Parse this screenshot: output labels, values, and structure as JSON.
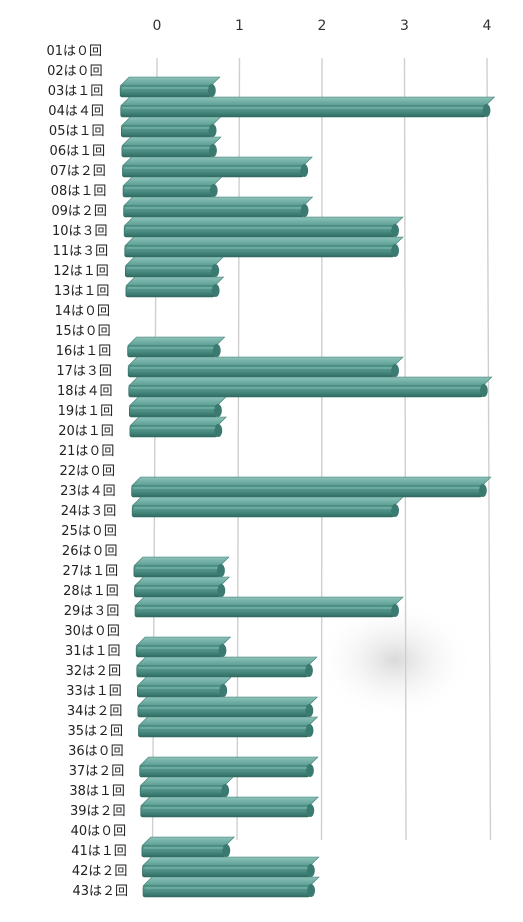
{
  "chart_data": {
    "type": "bar",
    "orientation": "horizontal",
    "title": "",
    "xlabel": "",
    "ylabel": "",
    "xlim": [
      0,
      4
    ],
    "ticks": [
      "0",
      "1",
      "2",
      "3",
      "4"
    ],
    "grid": true,
    "legend": "none",
    "bar_color": "#4f9489",
    "categories": [
      "01は０回",
      "02は０回",
      "03は１回",
      "04は４回",
      "05は１回",
      "06は１回",
      "07は２回",
      "08は１回",
      "09は２回",
      "10は３回",
      "11は３回",
      "12は１回",
      "13は１回",
      "14は０回",
      "15は０回",
      "16は１回",
      "17は３回",
      "18は４回",
      "19は１回",
      "20は１回",
      "21は０回",
      "22は０回",
      "23は４回",
      "24は３回",
      "25は０回",
      "26は０回",
      "27は１回",
      "28は１回",
      "29は３回",
      "30は０回",
      "31は１回",
      "32は２回",
      "33は１回",
      "34は２回",
      "35は２回",
      "36は０回",
      "37は２回",
      "38は１回",
      "39は２回",
      "40は０回",
      "41は１回",
      "42は２回",
      "43は２回"
    ],
    "values": [
      0,
      0,
      1,
      4,
      1,
      1,
      2,
      1,
      2,
      3,
      3,
      1,
      1,
      0,
      0,
      1,
      3,
      4,
      1,
      1,
      0,
      0,
      4,
      3,
      0,
      0,
      1,
      1,
      3,
      0,
      1,
      2,
      1,
      2,
      2,
      0,
      2,
      1,
      2,
      0,
      1,
      2,
      2
    ]
  }
}
